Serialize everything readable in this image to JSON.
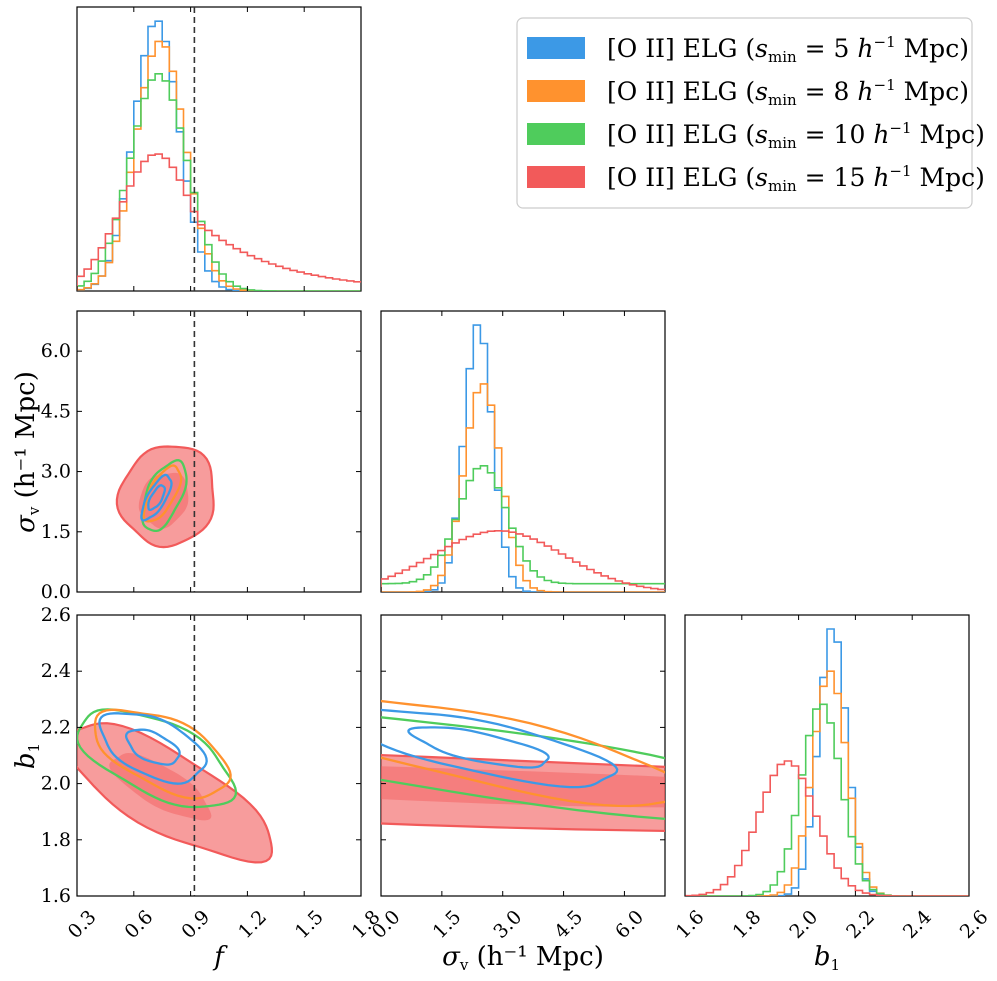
{
  "chart_data": {
    "type": "corner-plot",
    "parameters": [
      "f",
      "σ_v",
      "b_1"
    ],
    "truth": {
      "f": 0.92
    },
    "axes": {
      "f": {
        "range": [
          0.3,
          1.8
        ],
        "ticks": [
          "0.3",
          "0.6",
          "0.9",
          "1.2",
          "1.5",
          "1.8"
        ],
        "label": "f"
      },
      "sv": {
        "range": [
          0.0,
          7.0
        ],
        "ticks": [
          "0.0",
          "1.5",
          "3.0",
          "4.5",
          "6.0"
        ],
        "label_symbol": "σ",
        "label_sub": "v",
        "label_unit": " (h⁻¹ Mpc)"
      },
      "b1": {
        "range": [
          1.6,
          2.6
        ],
        "ticks": [
          "1.6",
          "1.8",
          "2.0",
          "2.2",
          "2.4",
          "2.6"
        ],
        "label_symbol": "b",
        "label_sub": "1"
      }
    },
    "series": [
      {
        "name": "[O II] ELG (s_min = 5 h⁻¹ Mpc)",
        "color": "#3c99e6",
        "f": {
          "mean": 0.72,
          "sd": 0.12,
          "skew": 0.0
        },
        "sv": {
          "mean": 2.4,
          "sd": 0.35,
          "floor": 0.0
        },
        "b1": {
          "mean": 2.12,
          "sd": 0.05,
          "floor": 0.0
        }
      },
      {
        "name": "[O II] ELG (s_min = 8 h⁻¹ Mpc)",
        "color": "#ff922e",
        "f": {
          "mean": 0.74,
          "sd": 0.13,
          "skew": 0.0
        },
        "sv": {
          "mean": 2.5,
          "sd": 0.45,
          "floor": 0.0
        },
        "b1": {
          "mean": 2.11,
          "sd": 0.06,
          "floor": 0.0
        }
      },
      {
        "name": "[O II] ELG (s_min = 10 h⁻¹ Mpc)",
        "color": "#4fcc5c",
        "f": {
          "mean": 0.73,
          "sd": 0.15,
          "skew": 0.0
        },
        "sv": {
          "mean": 2.5,
          "sd": 0.6,
          "floor": 0.07
        },
        "b1": {
          "mean": 2.08,
          "sd": 0.07,
          "floor": 0.0
        }
      },
      {
        "name": "[O II] ELG (s_min = 15 h⁻¹ Mpc)",
        "color": "#f25a5a",
        "f": {
          "mean": 0.72,
          "sd": 0.19,
          "skew": 0.16
        },
        "sv": {
          "mean": 2.9,
          "sd": 1.6,
          "floor": 0.0
        },
        "b1": {
          "mean": 1.96,
          "sd": 0.1,
          "floor": 0.0
        }
      }
    ],
    "contours": [
      {
        "pair": "f-sv",
        "series": 3,
        "filled": true,
        "level": 0.95,
        "center": [
          0.78,
          2.4
        ],
        "axes": [
          0.45,
          2.6
        ],
        "angle": 62
      },
      {
        "pair": "f-sv",
        "series": 3,
        "filled": true,
        "level": 0.68,
        "center": [
          0.76,
          2.3
        ],
        "axes": [
          0.25,
          1.3
        ],
        "angle": 62
      },
      {
        "pair": "f-sv",
        "series": 2,
        "filled": false,
        "level": 0.95,
        "center": [
          0.76,
          2.4
        ],
        "axes": [
          0.33,
          0.95
        ],
        "angle": 66
      },
      {
        "pair": "f-sv",
        "series": 1,
        "filled": false,
        "level": 0.95,
        "center": [
          0.75,
          2.45
        ],
        "axes": [
          0.27,
          0.7
        ],
        "angle": 62
      },
      {
        "pair": "f-sv",
        "series": 0,
        "filled": false,
        "level": 0.95,
        "center": [
          0.72,
          2.35
        ],
        "axes": [
          0.22,
          0.5
        ],
        "angle": 60
      },
      {
        "pair": "f-sv",
        "series": 0,
        "filled": false,
        "level": 0.68,
        "center": [
          0.72,
          2.35
        ],
        "axes": [
          0.12,
          0.3
        ],
        "angle": 60
      },
      {
        "pair": "f-b1",
        "series": 3,
        "filled": true,
        "level": 0.95,
        "center": [
          0.78,
          1.97
        ],
        "axes": [
          0.42,
          0.14
        ],
        "angle": -30
      },
      {
        "pair": "f-b1",
        "series": 3,
        "filled": true,
        "level": 0.68,
        "center": [
          0.74,
          1.99
        ],
        "axes": [
          0.2,
          0.07
        ],
        "angle": -30
      },
      {
        "pair": "f-b1",
        "series": 2,
        "filled": false,
        "level": 0.95,
        "center": [
          0.72,
          2.09
        ],
        "axes": [
          0.3,
          0.13
        ],
        "angle": -25
      },
      {
        "pair": "f-b1",
        "series": 1,
        "filled": false,
        "level": 0.95,
        "center": [
          0.75,
          2.11
        ],
        "axes": [
          0.26,
          0.12
        ],
        "angle": -25
      },
      {
        "pair": "f-b1",
        "series": 0,
        "filled": false,
        "level": 0.95,
        "center": [
          0.7,
          2.13
        ],
        "axes": [
          0.2,
          0.1
        ],
        "angle": -25
      },
      {
        "pair": "f-b1",
        "series": 0,
        "filled": false,
        "level": 0.68,
        "center": [
          0.7,
          2.13
        ],
        "axes": [
          0.1,
          0.05
        ],
        "angle": -25
      },
      {
        "pair": "sv-b1",
        "series": 3,
        "filled": true,
        "level": 0.95,
        "center": [
          2.9,
          1.97
        ],
        "axes": [
          3.1,
          0.12
        ],
        "angle": -2
      },
      {
        "pair": "sv-b1",
        "series": 3,
        "filled": true,
        "level": 0.68,
        "center": [
          2.7,
          1.99
        ],
        "axes": [
          1.6,
          0.06
        ],
        "angle": -2
      },
      {
        "pair": "sv-b1",
        "series": 2,
        "filled": false,
        "level": 0.95,
        "center": [
          2.6,
          2.07
        ],
        "axes": [
          1.3,
          0.12
        ],
        "angle": -8
      },
      {
        "pair": "sv-b1",
        "series": 1,
        "filled": false,
        "level": 0.95,
        "center": [
          2.55,
          2.12
        ],
        "axes": [
          0.75,
          0.12
        ],
        "angle": -12
      },
      {
        "pair": "sv-b1",
        "series": 0,
        "filled": false,
        "level": 0.95,
        "center": [
          2.45,
          2.13
        ],
        "axes": [
          0.5,
          0.09
        ],
        "angle": -12
      },
      {
        "pair": "sv-b1",
        "series": 0,
        "filled": false,
        "level": 0.68,
        "center": [
          2.45,
          2.13
        ],
        "axes": [
          0.25,
          0.05
        ],
        "angle": -12
      }
    ]
  },
  "legend": {
    "entries": [
      {
        "pre": "[O II] ELG (",
        "s": "s",
        "sub": "min",
        "mid": " = 5 ",
        "h": "h",
        "sup": "−1",
        "post": " Mpc)"
      },
      {
        "pre": "[O II] ELG (",
        "s": "s",
        "sub": "min",
        "mid": " = 8 ",
        "h": "h",
        "sup": "−1",
        "post": " Mpc)"
      },
      {
        "pre": "[O II] ELG (",
        "s": "s",
        "sub": "min",
        "mid": " = 10 ",
        "h": "h",
        "sup": "−1",
        "post": " Mpc)"
      },
      {
        "pre": "[O II] ELG (",
        "s": "s",
        "sub": "min",
        "mid": " = 15 ",
        "h": "h",
        "sup": "−1",
        "post": " Mpc)"
      }
    ]
  }
}
